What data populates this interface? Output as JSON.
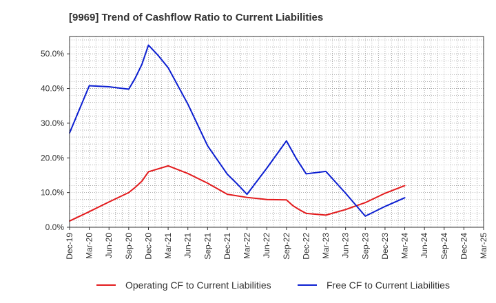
{
  "chart_data": {
    "type": "line",
    "title": "[9969]  Trend of Cashflow Ratio to Current Liabilities",
    "x_labels": [
      "Dec-19",
      "Mar-20",
      "Jun-20",
      "Sep-20",
      "Dec-20",
      "Mar-21",
      "Jun-21",
      "Sep-21",
      "Dec-21",
      "Mar-22",
      "Jun-22",
      "Sep-22",
      "Dec-22",
      "Mar-23",
      "Jun-23",
      "Sep-23",
      "Dec-23",
      "Mar-24",
      "Jun-24",
      "Sep-24",
      "Dec-24",
      "Mar-25"
    ],
    "y_ticks": [
      "0.0%",
      "10.0%",
      "20.0%",
      "30.0%",
      "40.0%",
      "50.0%"
    ],
    "ylim": [
      0,
      55
    ],
    "grid": true,
    "legend_position": "bottom",
    "series": [
      {
        "name": "Operating CF to Current Liabilities",
        "color": "#e31a1c",
        "points": [
          [
            0,
            1.8
          ],
          [
            1,
            4.5
          ],
          [
            2,
            7.3
          ],
          [
            3,
            10.0
          ],
          [
            3.33,
            11.5
          ],
          [
            3.67,
            13.3
          ],
          [
            4,
            16.0
          ],
          [
            5,
            17.7
          ],
          [
            6,
            15.5
          ],
          [
            7,
            12.7
          ],
          [
            8,
            9.5
          ],
          [
            9,
            8.6
          ],
          [
            10,
            8.0
          ],
          [
            11,
            7.9
          ],
          [
            11.33,
            6.2
          ],
          [
            11.67,
            5.0
          ],
          [
            12,
            4.0
          ],
          [
            13,
            3.5
          ],
          [
            14,
            5.1
          ],
          [
            15,
            7.1
          ],
          [
            16,
            9.8
          ],
          [
            17,
            12.0
          ]
        ]
      },
      {
        "name": "Free CF to Current Liabilities",
        "color": "#0b1ed1",
        "points": [
          [
            0,
            27.2
          ],
          [
            0.5,
            34.0
          ],
          [
            1,
            40.8
          ],
          [
            2,
            40.5
          ],
          [
            3,
            39.8
          ],
          [
            3.33,
            43.0
          ],
          [
            3.67,
            47.0
          ],
          [
            4,
            52.5
          ],
          [
            4.5,
            49.5
          ],
          [
            5,
            46.0
          ],
          [
            6,
            35.5
          ],
          [
            7,
            23.5
          ],
          [
            8,
            15.3
          ],
          [
            8.5,
            12.5
          ],
          [
            9,
            9.5
          ],
          [
            10,
            17.0
          ],
          [
            11,
            24.9
          ],
          [
            11.5,
            19.8
          ],
          [
            12,
            15.4
          ],
          [
            13,
            16.1
          ],
          [
            14,
            9.8
          ],
          [
            15,
            3.2
          ],
          [
            16,
            6.0
          ],
          [
            17,
            8.5
          ]
        ]
      }
    ]
  }
}
